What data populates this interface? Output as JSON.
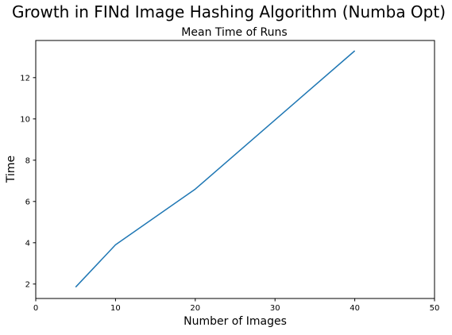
{
  "chart_data": {
    "type": "line",
    "title": "Growth in FINd Image Hashing Algorithm (Numba Opt)",
    "subtitle": "Mean Time of Runs",
    "xlabel": "Number of Images",
    "ylabel": "Time",
    "xlim": [
      0,
      50
    ],
    "ylim": [
      1.3,
      13.8
    ],
    "xticks": [
      0,
      10,
      20,
      30,
      40,
      50
    ],
    "yticks": [
      2,
      4,
      6,
      8,
      10,
      12
    ],
    "grid": false,
    "series": [
      {
        "color": "#1f77b4",
        "x": [
          5,
          10,
          20,
          40
        ],
        "y": [
          1.85,
          3.9,
          6.6,
          13.3
        ]
      }
    ]
  }
}
